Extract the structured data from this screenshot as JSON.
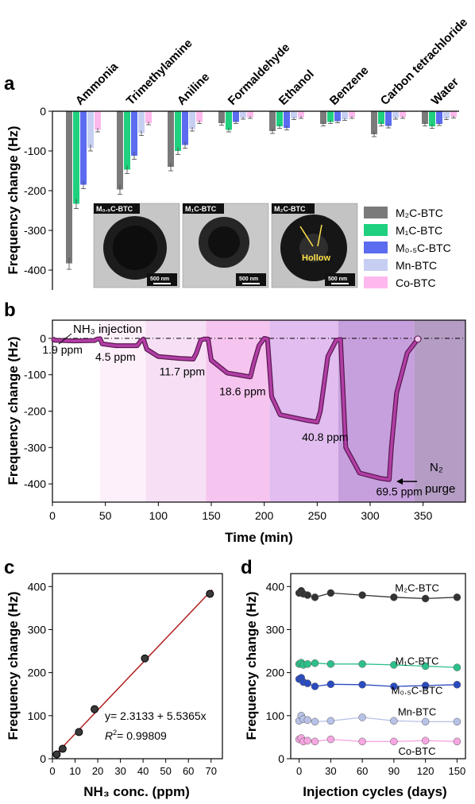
{
  "chart_data": [
    {
      "panel": "a",
      "type": "bar",
      "ylabel": "Frequency change (Hz)",
      "ylim": [
        -450,
        0
      ],
      "yticks": [
        "0",
        "-100",
        "-200",
        "-300",
        "-400"
      ],
      "categories": [
        "Ammonia",
        "Trimethylamine",
        "Aniline",
        "Formaldehyde",
        "Ethanol",
        "Benzene",
        "Carbon tetrachloride",
        "Water"
      ],
      "series": [
        {
          "name": "M₂C-BTC",
          "color": "#7a7a7a",
          "values": [
            -383,
            -197,
            -140,
            -30,
            -50,
            -32,
            -58,
            -32
          ],
          "errors": [
            15,
            12,
            10,
            5,
            6,
            5,
            6,
            5
          ]
        },
        {
          "name": "M₁C-BTC",
          "color": "#1fd07e",
          "values": [
            -233,
            -147,
            -100,
            -47,
            -38,
            -27,
            -32,
            -38
          ],
          "errors": [
            12,
            10,
            9,
            5,
            5,
            4,
            5,
            5
          ]
        },
        {
          "name": "M₀.₅C-BTC",
          "color": "#5b6cf0",
          "values": [
            -185,
            -112,
            -85,
            -27,
            -42,
            -25,
            -37,
            -32
          ],
          "errors": [
            10,
            9,
            8,
            4,
            5,
            4,
            5,
            4
          ]
        },
        {
          "name": "Mn-BTC",
          "color": "#c6cff2",
          "values": [
            -92,
            -55,
            -45,
            -17,
            -18,
            -20,
            -17,
            -18
          ],
          "errors": [
            8,
            6,
            5,
            3,
            3,
            3,
            3,
            3
          ]
        },
        {
          "name": "Co-BTC",
          "color": "#ffb8ec",
          "values": [
            -47,
            -30,
            -27,
            -15,
            -15,
            -15,
            -15,
            -14
          ],
          "errors": [
            5,
            4,
            4,
            3,
            3,
            3,
            3,
            3
          ]
        }
      ],
      "insets": [
        {
          "label": "M₀.₅C-BTC",
          "scale": "500 nm"
        },
        {
          "label": "M₁C-BTC",
          "scale": "500 nm"
        },
        {
          "label": "M₂C-BTC",
          "scale": "500 nm",
          "annotation": "Hollow"
        }
      ]
    },
    {
      "panel": "b",
      "type": "line",
      "xlabel": "Time (min)",
      "ylabel": "Frequency change (Hz)",
      "xlim": [
        0,
        390
      ],
      "ylim": [
        -450,
        50
      ],
      "xticks": [
        "0",
        "50",
        "100",
        "150",
        "200",
        "250",
        "300",
        "350"
      ],
      "yticks": [
        "0",
        "-100",
        "-200",
        "-300",
        "-400"
      ],
      "annotations": {
        "injection": "NH₃ injection",
        "purge_line1": "N₂",
        "purge_line2": "purge"
      },
      "concentrations": [
        "1.9 ppm",
        "4.5 ppm",
        "11.7 ppm",
        "18.6 ppm",
        "40.8 ppm",
        "69.5 ppm"
      ],
      "line_color": "#b33ea6",
      "points": [
        [
          0,
          0
        ],
        [
          2,
          -5
        ],
        [
          20,
          -7
        ],
        [
          40,
          -6
        ],
        [
          42,
          -2
        ],
        [
          45,
          -1
        ],
        [
          47,
          -15
        ],
        [
          60,
          -20
        ],
        [
          80,
          -20
        ],
        [
          83,
          -8
        ],
        [
          86,
          -2
        ],
        [
          89,
          -30
        ],
        [
          100,
          -50
        ],
        [
          120,
          -55
        ],
        [
          133,
          -57
        ],
        [
          136,
          -40
        ],
        [
          140,
          -5
        ],
        [
          143,
          -2
        ],
        [
          147,
          -2
        ],
        [
          150,
          -60
        ],
        [
          165,
          -95
        ],
        [
          185,
          -105
        ],
        [
          187,
          -106
        ],
        [
          190,
          -70
        ],
        [
          195,
          -20
        ],
        [
          200,
          0
        ],
        [
          203,
          -2
        ],
        [
          207,
          -160
        ],
        [
          215,
          -210
        ],
        [
          240,
          -225
        ],
        [
          250,
          -230
        ],
        [
          253,
          -200
        ],
        [
          260,
          -50
        ],
        [
          268,
          -5
        ],
        [
          272,
          -3
        ],
        [
          277,
          -300
        ],
        [
          290,
          -370
        ],
        [
          310,
          -385
        ],
        [
          318,
          -388
        ],
        [
          320,
          -300
        ],
        [
          325,
          -150
        ],
        [
          335,
          -40
        ],
        [
          345,
          -2
        ]
      ],
      "bands": [
        {
          "from": 0,
          "to": 45,
          "color": "#ffffff"
        },
        {
          "from": 45,
          "to": 88,
          "color": "#fdf0fb"
        },
        {
          "from": 88,
          "to": 145,
          "color": "#f7e0f5"
        },
        {
          "from": 145,
          "to": 205,
          "color": "#f6c5ef"
        },
        {
          "from": 205,
          "to": 270,
          "color": "#e1bdf0"
        },
        {
          "from": 270,
          "to": 342,
          "color": "#c6a0dc"
        },
        {
          "from": 342,
          "to": 390,
          "color": "#b49cc4"
        }
      ]
    },
    {
      "panel": "c",
      "type": "scatter",
      "xlabel": "NH₃ conc. (ppm)",
      "ylabel": "Frequency change (Hz)",
      "xlim": [
        0,
        75
      ],
      "ylim": [
        0,
        430
      ],
      "xticks": [
        "0",
        "10",
        "20",
        "30",
        "40",
        "50",
        "60",
        "70"
      ],
      "yticks": [
        "0",
        "100",
        "200",
        "300",
        "400"
      ],
      "fit_equation": "y= 2.3133 + 5.5365x",
      "r_squared": "= 0.99809",
      "points": [
        [
          1.9,
          10
        ],
        [
          4.5,
          23
        ],
        [
          11.7,
          62
        ],
        [
          18.6,
          115
        ],
        [
          40.8,
          233
        ],
        [
          69.5,
          383
        ]
      ],
      "fit": {
        "intercept": 2.3133,
        "slope": 5.5365
      }
    },
    {
      "panel": "d",
      "type": "line",
      "xlabel": "Injection cycles (days)",
      "ylabel": "Frequency change (Hz)",
      "xlim": [
        -8,
        158
      ],
      "ylim": [
        0,
        430
      ],
      "xticks": [
        "0",
        "30",
        "60",
        "90",
        "120",
        "150"
      ],
      "yticks": [
        "0",
        "100",
        "200",
        "300",
        "400"
      ],
      "x": [
        0,
        2,
        4,
        8,
        15,
        30,
        60,
        90,
        120,
        150
      ],
      "series": [
        {
          "name": "M₂C-BTC",
          "color": "#333333",
          "values": [
            385,
            390,
            383,
            380,
            375,
            385,
            380,
            375,
            372,
            375
          ]
        },
        {
          "name": "M₁C-BTC",
          "color": "#2dbf8a",
          "values": [
            220,
            223,
            218,
            220,
            222,
            220,
            220,
            218,
            215,
            212
          ]
        },
        {
          "name": "M₀.₅C-BTC",
          "color": "#2a4bc0",
          "values": [
            185,
            188,
            178,
            175,
            168,
            173,
            172,
            168,
            170,
            172
          ]
        },
        {
          "name": "Mn-BTC",
          "color": "#b8c2e8",
          "values": [
            88,
            100,
            92,
            90,
            86,
            88,
            96,
            88,
            86,
            86
          ]
        },
        {
          "name": "Co-BTC",
          "color": "#f6a6e0",
          "values": [
            45,
            48,
            40,
            42,
            40,
            45,
            40,
            40,
            42,
            40
          ]
        }
      ]
    }
  ],
  "panel_letters": {
    "a": "a",
    "b": "b",
    "c": "c",
    "d": "d"
  }
}
